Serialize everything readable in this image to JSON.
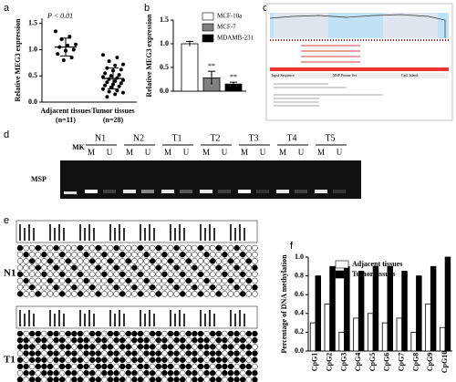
{
  "chart_data": [
    {
      "type": "strip",
      "label": "a",
      "ylabel": "Relative MEG3 expression",
      "annotation": "P < 0.01",
      "categories": [
        "Adjacent tissues",
        "Tumor tissues"
      ],
      "category_counts": [
        "(n=11)",
        "(n=28)"
      ],
      "values": [
        [
          1.35,
          1.25,
          1.2,
          1.1,
          1.08,
          1.05,
          1.0,
          0.98,
          0.92,
          0.85,
          0.8
        ],
        [
          0.9,
          0.85,
          0.78,
          0.72,
          0.7,
          0.65,
          0.62,
          0.6,
          0.55,
          0.52,
          0.5,
          0.48,
          0.46,
          0.44,
          0.42,
          0.4,
          0.38,
          0.36,
          0.34,
          0.32,
          0.3,
          0.28,
          0.25,
          0.22,
          0.2,
          0.18,
          0.15,
          0.1
        ]
      ],
      "means": [
        1.05,
        0.45
      ],
      "sds": [
        0.17,
        0.2
      ],
      "color": "#000000",
      "ylim": [
        0,
        1.6
      ],
      "yticks": [
        {
          "value": 0,
          "label": "0.0"
        },
        {
          "value": 0.5,
          "label": "0.5"
        },
        {
          "value": 1,
          "label": "1.0"
        },
        {
          "value": 1.5,
          "label": "1.5"
        }
      ]
    },
    {
      "type": "bar",
      "label": "b",
      "ylabel": "Relative MEG3 expression",
      "series": [
        {
          "name": "MCF-10a",
          "color": "#ffffff",
          "values": [
            1.0
          ],
          "errors": [
            0.05
          ]
        },
        {
          "name": "MCF-7",
          "color": "#808080",
          "values": [
            0.28
          ],
          "errors": [
            0.14
          ],
          "significance": "**"
        },
        {
          "name": "MDAMB-231",
          "color": "#000000",
          "values": [
            0.15
          ],
          "errors": [
            0.04
          ],
          "significance": "**"
        }
      ],
      "ylim": [
        0,
        1.5
      ],
      "yticks": [
        {
          "value": 0,
          "label": "0.0"
        },
        {
          "value": 0.5,
          "label": "0.5"
        },
        {
          "value": 1,
          "label": "1.0"
        },
        {
          "value": 1.5,
          "label": "1.5"
        }
      ]
    },
    {
      "type": "groupedbar",
      "label": "f",
      "ylabel": "Percentage of DNA methylation",
      "categories": [
        "CpG1",
        "CpG2",
        "CpG3",
        "CpG4",
        "CpG5",
        "CpG6",
        "CpG7",
        "CpG8",
        "CpG9",
        "CpG10"
      ],
      "series": [
        {
          "name": "Adjacent tissues",
          "color": "#ffffff",
          "values": [
            0.3,
            0.5,
            0.2,
            0.35,
            0.4,
            0.3,
            0.35,
            0.2,
            0.5,
            0.25
          ]
        },
        {
          "name": "Tumor tissues",
          "color": "#000000",
          "values": [
            0.8,
            0.9,
            0.9,
            0.85,
            0.9,
            0.9,
            0.85,
            0.8,
            0.9,
            1.0
          ]
        }
      ],
      "ylim": [
        0,
        1.0
      ],
      "yticks": [
        {
          "value": 0,
          "label": "0.0"
        },
        {
          "value": 0.2,
          "label": "0.2"
        },
        {
          "value": 0.4,
          "label": "0.4"
        },
        {
          "value": 0.6,
          "label": "0.6"
        },
        {
          "value": 0.8,
          "label": "0.8"
        },
        {
          "value": 1,
          "label": "1.0"
        }
      ]
    }
  ],
  "panels": {
    "c": {
      "label": "c",
      "texts": [
        "Input Sequence",
        "MSP Primer Set",
        "CpG Island"
      ]
    },
    "d": {
      "label": "d",
      "marker": "MK",
      "method": "MSP",
      "lanes": [
        "N1",
        "N2",
        "T1",
        "T2",
        "T3",
        "T4",
        "T5"
      ],
      "lane_states": [
        "M",
        "U"
      ]
    },
    "e": {
      "label": "e",
      "samples": [
        "N1",
        "T1"
      ]
    }
  }
}
